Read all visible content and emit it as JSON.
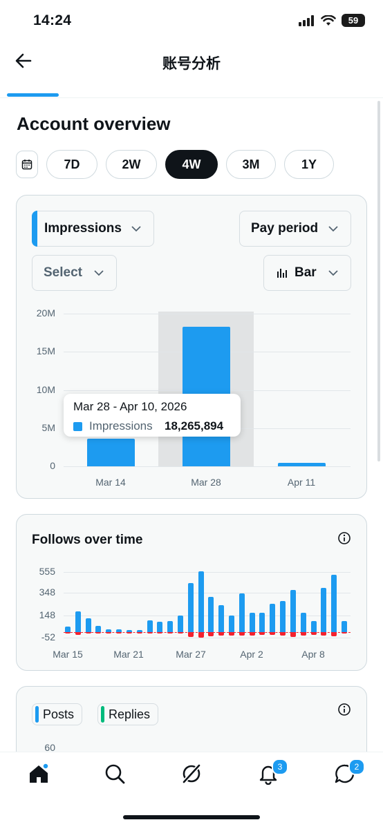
{
  "status": {
    "time": "14:24",
    "battery": "59"
  },
  "header": {
    "title": "账号分析"
  },
  "overview": {
    "title": "Account overview",
    "ranges": [
      "7D",
      "2W",
      "4W",
      "3M",
      "1Y"
    ],
    "active_range": "4W"
  },
  "impressions_card": {
    "metric_dropdown": "Impressions",
    "period_dropdown": "Pay period",
    "compare_dropdown": "Select",
    "chart_type_dropdown": "Bar",
    "tooltip": {
      "range": "Mar 28 - Apr 10, 2026",
      "metric": "Impressions",
      "value": "18,265,894"
    }
  },
  "follows_card": {
    "title": "Follows over time"
  },
  "posts_card": {
    "legend": [
      "Posts",
      "Replies"
    ],
    "y_top": "60"
  },
  "nav": {
    "notifications_badge": "3",
    "messages_badge": "2"
  },
  "colors": {
    "accent": "#1d9bf0",
    "negative": "#f4212e",
    "replies": "#00ba7c"
  },
  "chart_data": [
    {
      "type": "bar",
      "categories": [
        "Mar 14",
        "Mar 28",
        "Apr 11"
      ],
      "series": [
        {
          "name": "Impressions",
          "values": [
            3600000,
            18265894,
            450000
          ]
        }
      ],
      "y_ticks": [
        "20M",
        "15M",
        "10M",
        "5M",
        "0"
      ],
      "ylim": [
        0,
        20000000
      ],
      "highlighted": "Mar 28"
    },
    {
      "type": "bar",
      "title": "Follows over time",
      "x_ticks": [
        "Mar 15",
        "Mar 21",
        "Mar 27",
        "Apr 2",
        "Apr 8"
      ],
      "y_ticks": [
        "555",
        "348",
        "148",
        "-52"
      ],
      "ylim": [
        -52,
        555
      ],
      "positive": [
        50,
        190,
        130,
        60,
        25,
        28,
        22,
        18,
        110,
        95,
        100,
        150,
        450,
        560,
        325,
        250,
        150,
        360,
        180,
        180,
        260,
        290,
        390,
        180,
        100,
        410,
        530,
        100
      ],
      "negative": [
        -3,
        -25,
        -10,
        -8,
        -5,
        -5,
        -5,
        -8,
        -10,
        -10,
        -12,
        -15,
        -45,
        -50,
        -40,
        -35,
        -30,
        -35,
        -30,
        -25,
        -25,
        -30,
        -45,
        -35,
        -25,
        -35,
        -40,
        -5
      ]
    }
  ]
}
